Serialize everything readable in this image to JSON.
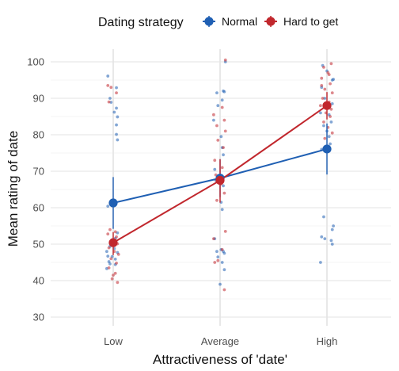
{
  "chart_data": {
    "type": "scatter",
    "subtype": "interaction-plot-with-jittered-points",
    "xlabel": "Attractiveness of 'date'",
    "ylabel": "Mean rating of date",
    "categories": [
      "Low",
      "Average",
      "High"
    ],
    "ylim": [
      27,
      103
    ],
    "yticks": [
      30,
      40,
      50,
      60,
      70,
      80,
      90,
      100
    ],
    "grid": true,
    "legend": {
      "title": "Dating strategy",
      "position": "top"
    },
    "series": [
      {
        "name": "Normal",
        "color": "#1f5fb3",
        "means": [
          61.3,
          68.1,
          76.1
        ],
        "error_bars": [
          [
            54.2,
            68.4
          ],
          [
            62.9,
            73.3
          ],
          [
            69.1,
            83.1
          ]
        ],
        "points": [
          [
            -0.05,
            96.1
          ],
          [
            0.03,
            92.9
          ],
          [
            -0.03,
            90.0
          ],
          [
            -0.02,
            88.9
          ],
          [
            0.03,
            87.3
          ],
          [
            0.01,
            86.2
          ],
          [
            0.04,
            84.9
          ],
          [
            0.03,
            82.7
          ],
          [
            0.03,
            80.1
          ],
          [
            0.04,
            78.6
          ],
          [
            -0.05,
            60.4
          ],
          [
            0.04,
            53.1
          ],
          [
            0.02,
            51.6
          ],
          [
            -0.01,
            50.3
          ],
          [
            -0.03,
            49.4
          ],
          [
            0.01,
            48.8
          ],
          [
            -0.06,
            48.0
          ],
          [
            0.04,
            47.7
          ],
          [
            -0.05,
            46.7
          ],
          [
            -0.01,
            46.6
          ],
          [
            0.02,
            45.9
          ],
          [
            -0.04,
            45.2
          ],
          [
            -0.03,
            44.6
          ],
          [
            0.02,
            44.4
          ],
          [
            -0.06,
            43.3
          ],
          [
            0.04,
            43.0
          ],
          [
            0.05,
            100.0
          ],
          [
            -0.03,
            91.5
          ],
          [
            0.03,
            92.0
          ],
          [
            0.04,
            91.8
          ],
          [
            0.02,
            89.5
          ],
          [
            -0.02,
            88.0
          ],
          [
            -0.06,
            84.0
          ],
          [
            0.01,
            79.5
          ],
          [
            0.02,
            76.5
          ],
          [
            0.03,
            74.5
          ],
          [
            -0.05,
            70.5
          ],
          [
            0.02,
            68.5
          ],
          [
            -0.04,
            67.5
          ],
          [
            0.03,
            66.0
          ],
          [
            0.01,
            61.5
          ],
          [
            0.02,
            59.5
          ],
          [
            -0.05,
            51.5
          ],
          [
            -0.03,
            48.0
          ],
          [
            0.01,
            48.5
          ],
          [
            0.03,
            48.0
          ],
          [
            0.04,
            47.5
          ],
          [
            -0.02,
            46.5
          ],
          [
            0.02,
            45.0
          ],
          [
            0.0,
            39.0
          ],
          [
            -0.04,
            99.0
          ],
          [
            0.0,
            97.5
          ],
          [
            0.05,
            95.0
          ],
          [
            0.06,
            95.2
          ],
          [
            -0.05,
            93.0
          ],
          [
            -0.02,
            90.0
          ],
          [
            0.05,
            88.5
          ],
          [
            -0.06,
            86.0
          ],
          [
            0.02,
            85.5
          ],
          [
            0.04,
            83.5
          ],
          [
            -0.03,
            82.5
          ],
          [
            0.0,
            81.0
          ],
          [
            0.02,
            79.5
          ],
          [
            0.03,
            77.5
          ],
          [
            -0.05,
            76.0
          ],
          [
            -0.03,
            57.5
          ],
          [
            0.06,
            55.0
          ],
          [
            0.05,
            54.0
          ],
          [
            -0.05,
            52.0
          ],
          [
            -0.02,
            51.5
          ],
          [
            0.04,
            51.0
          ],
          [
            -0.06,
            45.0
          ],
          [
            0.05,
            50.0
          ]
        ]
      },
      {
        "name": "Hard to get",
        "color": "#c1272d",
        "means": [
          50.4,
          67.5,
          88.0
        ],
        "error_bars": [
          [
            47.0,
            53.3
          ],
          [
            61.4,
            73.3
          ],
          [
            84.2,
            91.7
          ]
        ],
        "points": [
          [
            -0.03,
            54.0
          ],
          [
            0.02,
            53.4
          ],
          [
            -0.05,
            52.8
          ],
          [
            0.03,
            52.0
          ],
          [
            -0.01,
            51.2
          ],
          [
            0.04,
            50.1
          ],
          [
            -0.04,
            49.0
          ],
          [
            0.01,
            48.0
          ],
          [
            0.05,
            47.2
          ],
          [
            -0.02,
            46.0
          ],
          [
            0.03,
            44.8
          ],
          [
            -0.04,
            43.5
          ],
          [
            0.02,
            42.0
          ],
          [
            -0.01,
            40.5
          ],
          [
            0.04,
            39.5
          ],
          [
            0.0,
            41.5
          ],
          [
            -0.05,
            93.5
          ],
          [
            -0.02,
            93.0
          ],
          [
            0.03,
            91.5
          ],
          [
            -0.04,
            89.0
          ],
          [
            0.02,
            87.5
          ],
          [
            -0.06,
            85.5
          ],
          [
            0.04,
            84.0
          ],
          [
            -0.03,
            82.5
          ],
          [
            0.05,
            81.0
          ],
          [
            -0.02,
            78.5
          ],
          [
            0.03,
            76.5
          ],
          [
            -0.05,
            73.0
          ],
          [
            0.02,
            71.0
          ],
          [
            -0.04,
            69.0
          ],
          [
            0.01,
            66.5
          ],
          [
            0.04,
            64.0
          ],
          [
            -0.03,
            62.0
          ],
          [
            0.05,
            53.5
          ],
          [
            -0.06,
            51.5
          ],
          [
            0.02,
            48.5
          ],
          [
            -0.02,
            45.5
          ],
          [
            0.04,
            37.5
          ],
          [
            -0.05,
            45.0
          ],
          [
            0.05,
            100.5
          ],
          [
            0.04,
            99.5
          ],
          [
            -0.03,
            98.5
          ],
          [
            0.01,
            97.0
          ],
          [
            -0.05,
            95.5
          ],
          [
            0.03,
            94.0
          ],
          [
            -0.02,
            92.5
          ],
          [
            0.05,
            91.5
          ],
          [
            -0.04,
            90.0
          ],
          [
            0.02,
            89.0
          ],
          [
            -0.06,
            88.0
          ],
          [
            0.04,
            87.0
          ],
          [
            -0.01,
            86.0
          ],
          [
            0.03,
            85.0
          ],
          [
            -0.03,
            83.5
          ],
          [
            0.01,
            82.0
          ],
          [
            0.05,
            80.5
          ],
          [
            -0.02,
            79.0
          ],
          [
            0.02,
            96.5
          ],
          [
            -0.05,
            93.5
          ]
        ]
      }
    ]
  }
}
